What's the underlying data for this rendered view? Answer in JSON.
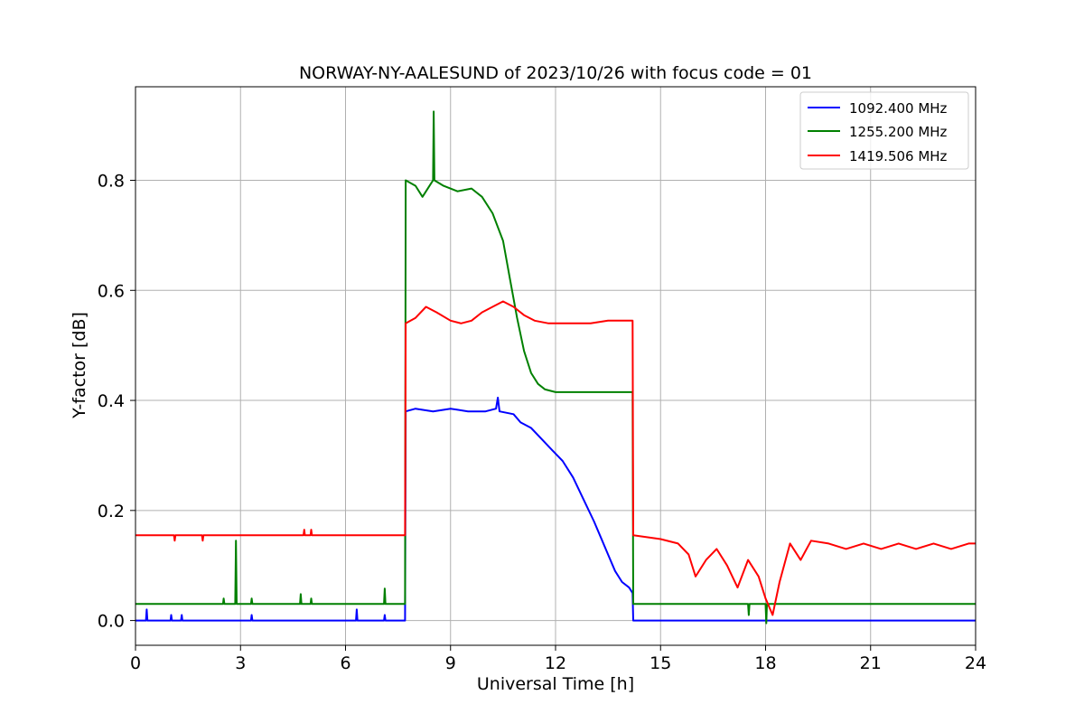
{
  "chart_data": {
    "type": "line",
    "title": "NORWAY-NY-AALESUND of 2023/10/26 with focus code = 01",
    "xlabel": "Universal Time [h]",
    "ylabel": "Y-factor [dB]",
    "xlim": [
      0,
      24
    ],
    "ylim": [
      -0.045,
      0.97
    ],
    "xticks": [
      "0",
      "3",
      "6",
      "9",
      "12",
      "15",
      "18",
      "21",
      "24"
    ],
    "yticks": [
      "0.0",
      "0.2",
      "0.4",
      "0.6",
      "0.8"
    ],
    "grid": true,
    "legend_position": "top-right",
    "series": [
      {
        "name": "1092.400 MHz",
        "color": "#0000ff",
        "points": [
          [
            0,
            0
          ],
          [
            0.3,
            0
          ],
          [
            0.32,
            0.02
          ],
          [
            0.34,
            0
          ],
          [
            1.0,
            0
          ],
          [
            1.02,
            0.01
          ],
          [
            1.04,
            0
          ],
          [
            1.3,
            0
          ],
          [
            1.32,
            0.01
          ],
          [
            1.34,
            0
          ],
          [
            3.3,
            0
          ],
          [
            3.32,
            0.01
          ],
          [
            3.34,
            0
          ],
          [
            6.3,
            0
          ],
          [
            6.32,
            0.02
          ],
          [
            6.34,
            0
          ],
          [
            7.1,
            0
          ],
          [
            7.12,
            0.01
          ],
          [
            7.14,
            0
          ],
          [
            7.7,
            0
          ],
          [
            7.72,
            0.38
          ],
          [
            8.0,
            0.385
          ],
          [
            8.5,
            0.38
          ],
          [
            9.0,
            0.385
          ],
          [
            9.5,
            0.38
          ],
          [
            10.0,
            0.38
          ],
          [
            10.3,
            0.385
          ],
          [
            10.35,
            0.405
          ],
          [
            10.4,
            0.38
          ],
          [
            10.8,
            0.375
          ],
          [
            11.0,
            0.36
          ],
          [
            11.3,
            0.35
          ],
          [
            11.6,
            0.33
          ],
          [
            11.9,
            0.31
          ],
          [
            12.2,
            0.29
          ],
          [
            12.5,
            0.26
          ],
          [
            12.8,
            0.22
          ],
          [
            13.1,
            0.18
          ],
          [
            13.3,
            0.15
          ],
          [
            13.5,
            0.12
          ],
          [
            13.7,
            0.09
          ],
          [
            13.9,
            0.07
          ],
          [
            14.1,
            0.06
          ],
          [
            14.2,
            0.05
          ],
          [
            14.22,
            0
          ],
          [
            24,
            0
          ]
        ]
      },
      {
        "name": "1255.200 MHz",
        "color": "#008000",
        "points": [
          [
            0,
            0.03
          ],
          [
            2.5,
            0.03
          ],
          [
            2.52,
            0.04
          ],
          [
            2.54,
            0.03
          ],
          [
            2.85,
            0.03
          ],
          [
            2.87,
            0.145
          ],
          [
            2.89,
            0.03
          ],
          [
            3.3,
            0.03
          ],
          [
            3.32,
            0.04
          ],
          [
            3.34,
            0.03
          ],
          [
            4.7,
            0.03
          ],
          [
            4.72,
            0.048
          ],
          [
            4.74,
            0.03
          ],
          [
            5.0,
            0.03
          ],
          [
            5.02,
            0.04
          ],
          [
            5.04,
            0.03
          ],
          [
            7.1,
            0.03
          ],
          [
            7.12,
            0.058
          ],
          [
            7.14,
            0.03
          ],
          [
            7.7,
            0.03
          ],
          [
            7.72,
            0.8
          ],
          [
            8.0,
            0.79
          ],
          [
            8.2,
            0.77
          ],
          [
            8.4,
            0.79
          ],
          [
            8.5,
            0.8
          ],
          [
            8.52,
            0.925
          ],
          [
            8.54,
            0.8
          ],
          [
            8.8,
            0.79
          ],
          [
            9.2,
            0.78
          ],
          [
            9.6,
            0.785
          ],
          [
            9.9,
            0.77
          ],
          [
            10.2,
            0.74
          ],
          [
            10.5,
            0.69
          ],
          [
            10.7,
            0.62
          ],
          [
            10.9,
            0.55
          ],
          [
            11.1,
            0.49
          ],
          [
            11.3,
            0.45
          ],
          [
            11.5,
            0.43
          ],
          [
            11.7,
            0.42
          ],
          [
            12.0,
            0.415
          ],
          [
            12.5,
            0.415
          ],
          [
            14.2,
            0.415
          ],
          [
            14.22,
            0.03
          ],
          [
            17.5,
            0.03
          ],
          [
            17.52,
            0.01
          ],
          [
            17.54,
            0.03
          ],
          [
            18.0,
            0.03
          ],
          [
            18.02,
            -0.005
          ],
          [
            18.04,
            0.03
          ],
          [
            24,
            0.03
          ]
        ]
      },
      {
        "name": "1419.506 MHz",
        "color": "#ff0000",
        "points": [
          [
            0,
            0.155
          ],
          [
            1.1,
            0.155
          ],
          [
            1.12,
            0.145
          ],
          [
            1.14,
            0.155
          ],
          [
            1.9,
            0.155
          ],
          [
            1.92,
            0.145
          ],
          [
            1.94,
            0.155
          ],
          [
            4.8,
            0.155
          ],
          [
            4.82,
            0.165
          ],
          [
            4.84,
            0.155
          ],
          [
            5.0,
            0.155
          ],
          [
            5.02,
            0.165
          ],
          [
            5.04,
            0.155
          ],
          [
            7.7,
            0.155
          ],
          [
            7.72,
            0.54
          ],
          [
            8.0,
            0.55
          ],
          [
            8.3,
            0.57
          ],
          [
            8.6,
            0.56
          ],
          [
            9.0,
            0.545
          ],
          [
            9.3,
            0.54
          ],
          [
            9.6,
            0.545
          ],
          [
            9.9,
            0.56
          ],
          [
            10.2,
            0.57
          ],
          [
            10.5,
            0.58
          ],
          [
            10.8,
            0.57
          ],
          [
            11.1,
            0.555
          ],
          [
            11.4,
            0.545
          ],
          [
            11.8,
            0.54
          ],
          [
            12.2,
            0.54
          ],
          [
            12.6,
            0.54
          ],
          [
            13.0,
            0.54
          ],
          [
            13.5,
            0.545
          ],
          [
            14.0,
            0.545
          ],
          [
            14.2,
            0.545
          ],
          [
            14.22,
            0.155
          ],
          [
            15.0,
            0.148
          ],
          [
            15.5,
            0.14
          ],
          [
            15.8,
            0.12
          ],
          [
            16.0,
            0.08
          ],
          [
            16.3,
            0.11
          ],
          [
            16.6,
            0.13
          ],
          [
            16.9,
            0.1
          ],
          [
            17.2,
            0.06
          ],
          [
            17.5,
            0.11
          ],
          [
            17.8,
            0.08
          ],
          [
            18.0,
            0.04
          ],
          [
            18.2,
            0.01
          ],
          [
            18.4,
            0.07
          ],
          [
            18.7,
            0.14
          ],
          [
            19.0,
            0.11
          ],
          [
            19.3,
            0.145
          ],
          [
            19.8,
            0.14
          ],
          [
            20.3,
            0.13
          ],
          [
            20.8,
            0.14
          ],
          [
            21.3,
            0.13
          ],
          [
            21.8,
            0.14
          ],
          [
            22.3,
            0.13
          ],
          [
            22.8,
            0.14
          ],
          [
            23.3,
            0.13
          ],
          [
            23.8,
            0.14
          ],
          [
            24,
            0.14
          ]
        ]
      }
    ]
  }
}
